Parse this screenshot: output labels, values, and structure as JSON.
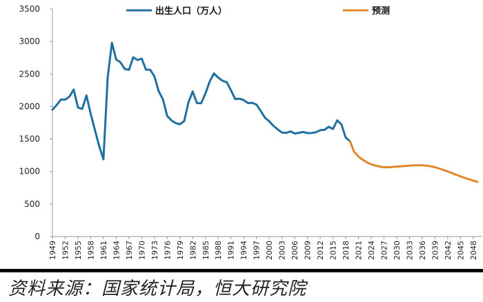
{
  "chart_data": {
    "type": "line",
    "title": "",
    "xlabel": "",
    "ylabel": "",
    "ylim": [
      0,
      3500
    ],
    "yticks": [
      0,
      500,
      1000,
      1500,
      2000,
      2500,
      3000,
      3500
    ],
    "xlim": [
      1949,
      2050
    ],
    "xticks": [
      1949,
      1952,
      1955,
      1958,
      1961,
      1964,
      1967,
      1970,
      1973,
      1976,
      1979,
      1982,
      1985,
      1988,
      1991,
      1994,
      1997,
      2000,
      2003,
      2006,
      2009,
      2012,
      2015,
      2018,
      2021,
      2024,
      2027,
      2030,
      2033,
      2036,
      2039,
      2042,
      2045,
      2048
    ],
    "grid": false,
    "legend_placement": "top",
    "series": [
      {
        "name": "出生人口（万人）",
        "color": "#1f6fa3",
        "x": [
          1949,
          1950,
          1951,
          1952,
          1953,
          1954,
          1955,
          1956,
          1957,
          1958,
          1959,
          1960,
          1961,
          1962,
          1963,
          1964,
          1965,
          1966,
          1967,
          1968,
          1969,
          1970,
          1971,
          1972,
          1973,
          1974,
          1975,
          1976,
          1977,
          1978,
          1979,
          1980,
          1981,
          1982,
          1983,
          1984,
          1985,
          1986,
          1987,
          1988,
          1989,
          1990,
          1991,
          1992,
          1993,
          1994,
          1995,
          1996,
          1997,
          1998,
          1999,
          2000,
          2001,
          2002,
          2003,
          2004,
          2005,
          2006,
          2007,
          2008,
          2009,
          2010,
          2011,
          2012,
          2013,
          2014,
          2015,
          2016,
          2017,
          2018,
          2019
        ],
        "y": [
          1950,
          2023,
          2107,
          2105,
          2151,
          2260,
          1984,
          1963,
          2169,
          1889,
          1635,
          1389,
          1187,
          2451,
          2980,
          2721,
          2679,
          2577,
          2563,
          2757,
          2715,
          2736,
          2567,
          2566,
          2463,
          2235,
          2109,
          1853,
          1786,
          1745,
          1727,
          1776,
          2064,
          2230,
          2052,
          2050,
          2202,
          2384,
          2508,
          2445,
          2396,
          2374,
          2250,
          2113,
          2120,
          2098,
          2052,
          2057,
          2028,
          1934,
          1827,
          1771,
          1702,
          1647,
          1599,
          1593,
          1617,
          1585,
          1595,
          1608,
          1591,
          1592,
          1604,
          1635,
          1640,
          1687,
          1655,
          1786,
          1723,
          1523,
          1465
        ]
      },
      {
        "name": "预测",
        "color": "#e0862b",
        "x": [
          2019,
          2020,
          2021,
          2022,
          2023,
          2024,
          2025,
          2026,
          2027,
          2028,
          2029,
          2030,
          2031,
          2032,
          2033,
          2034,
          2035,
          2036,
          2037,
          2038,
          2039,
          2040,
          2041,
          2042,
          2043,
          2044,
          2045,
          2046,
          2047,
          2048,
          2049
        ],
        "y": [
          1465,
          1300,
          1230,
          1180,
          1140,
          1110,
          1090,
          1075,
          1065,
          1065,
          1070,
          1075,
          1080,
          1085,
          1090,
          1095,
          1095,
          1095,
          1090,
          1080,
          1065,
          1045,
          1025,
          1000,
          975,
          950,
          925,
          900,
          880,
          860,
          840
        ]
      }
    ]
  },
  "source": "资料来源：国家统计局，恒大研究院"
}
